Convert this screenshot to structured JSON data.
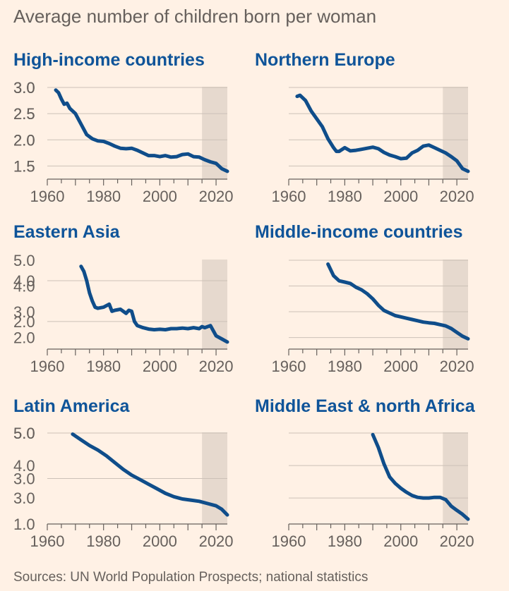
{
  "title": "Average number of children born per woman",
  "source": "Sources: UN World Population Prospects; national statistics",
  "colors": {
    "line": "#0f4d8a",
    "panel_title": "#0f5499",
    "projection_band": "#e6d9ce",
    "background": "#fff1e5"
  },
  "chart_data": [
    {
      "type": "line",
      "title": "High-income countries",
      "xlim": [
        1960,
        2024
      ],
      "ylim": [
        1.25,
        3.0
      ],
      "xticks": [
        "1960",
        "1980",
        "2000",
        "2020"
      ],
      "yticks": [
        "1.5",
        "2.0",
        "2.5",
        "3.0"
      ],
      "projection_start": 2015,
      "series": [
        {
          "x": [
            1963,
            1964,
            1965,
            1966,
            1967,
            1968,
            1970,
            1972,
            1974,
            1976,
            1978,
            1980,
            1982,
            1984,
            1986,
            1988,
            1990,
            1992,
            1994,
            1996,
            1998,
            2000,
            2002,
            2004,
            2006,
            2008,
            2010,
            2012,
            2014,
            2016,
            2018,
            2020,
            2022,
            2024
          ],
          "y": [
            2.95,
            2.9,
            2.78,
            2.68,
            2.7,
            2.6,
            2.5,
            2.3,
            2.1,
            2.02,
            1.98,
            1.97,
            1.93,
            1.88,
            1.84,
            1.83,
            1.84,
            1.8,
            1.75,
            1.7,
            1.7,
            1.68,
            1.7,
            1.67,
            1.68,
            1.72,
            1.73,
            1.68,
            1.67,
            1.62,
            1.58,
            1.55,
            1.45,
            1.4
          ]
        }
      ]
    },
    {
      "type": "line",
      "title": "Northern Europe",
      "xlim": [
        1960,
        2024
      ],
      "ylim": [
        1.25,
        3.0
      ],
      "xticks": [
        "1960",
        "1980",
        "2000",
        "2020"
      ],
      "yticks": [
        "1.5",
        "2.0",
        "2.5",
        "3.0"
      ],
      "projection_start": 2015,
      "series": [
        {
          "x": [
            1963,
            1964,
            1966,
            1968,
            1970,
            1972,
            1974,
            1976,
            1977,
            1978,
            1980,
            1982,
            1984,
            1986,
            1988,
            1990,
            1992,
            1994,
            1996,
            1998,
            2000,
            2002,
            2004,
            2006,
            2008,
            2010,
            2012,
            2014,
            2016,
            2018,
            2020,
            2022,
            2024
          ],
          "y": [
            2.83,
            2.85,
            2.75,
            2.55,
            2.4,
            2.25,
            2.02,
            1.85,
            1.78,
            1.78,
            1.85,
            1.79,
            1.8,
            1.82,
            1.84,
            1.86,
            1.83,
            1.76,
            1.71,
            1.68,
            1.64,
            1.65,
            1.75,
            1.8,
            1.88,
            1.9,
            1.85,
            1.8,
            1.75,
            1.68,
            1.6,
            1.45,
            1.4
          ]
        }
      ]
    },
    {
      "type": "line",
      "title": "Eastern Asia",
      "xlim": [
        1960,
        2024
      ],
      "ylim": [
        0.65,
        5.0
      ],
      "xticks": [
        "1960",
        "1980",
        "2000",
        "2020"
      ],
      "yticks": [
        "2.0",
        "4.0"
      ],
      "projection_start": 2015,
      "series": [
        {
          "x": [
            1972,
            1973,
            1974,
            1975,
            1976,
            1977,
            1978,
            1980,
            1982,
            1983,
            1984,
            1986,
            1988,
            1989,
            1990,
            1991,
            1992,
            1994,
            1996,
            1998,
            2000,
            2002,
            2004,
            2006,
            2008,
            2010,
            2012,
            2014,
            2015,
            2016,
            2018,
            2020,
            2022,
            2024
          ],
          "y": [
            4.7,
            4.45,
            4.0,
            3.4,
            3.0,
            2.7,
            2.65,
            2.7,
            2.85,
            2.5,
            2.55,
            2.6,
            2.4,
            2.55,
            2.5,
            2.0,
            1.8,
            1.7,
            1.63,
            1.6,
            1.62,
            1.6,
            1.65,
            1.65,
            1.68,
            1.65,
            1.7,
            1.65,
            1.75,
            1.7,
            1.8,
            1.3,
            1.15,
            1.0
          ]
        }
      ]
    },
    {
      "type": "line",
      "title": "Middle-income countries",
      "xlim": [
        1960,
        2024
      ],
      "ylim": [
        1.55,
        5.0
      ],
      "xticks": [
        "1960",
        "1980",
        "2000",
        "2020"
      ],
      "yticks": [
        "2.0",
        "3.0",
        "4.0",
        "5.0"
      ],
      "projection_start": 2015,
      "series": [
        {
          "x": [
            1974,
            1976,
            1978,
            1980,
            1982,
            1984,
            1986,
            1988,
            1990,
            1992,
            1994,
            1996,
            1998,
            2000,
            2002,
            2004,
            2006,
            2008,
            2010,
            2012,
            2014,
            2016,
            2018,
            2020,
            2022,
            2024
          ],
          "y": [
            4.85,
            4.4,
            4.2,
            4.15,
            4.1,
            3.95,
            3.85,
            3.7,
            3.5,
            3.25,
            3.05,
            2.95,
            2.85,
            2.8,
            2.75,
            2.7,
            2.65,
            2.6,
            2.57,
            2.55,
            2.5,
            2.45,
            2.35,
            2.2,
            2.05,
            1.95
          ]
        }
      ]
    },
    {
      "type": "line",
      "title": "Latin America",
      "xlim": [
        1960,
        2024
      ],
      "ylim": [
        1.0,
        5.0
      ],
      "xticks": [
        "1960",
        "1980",
        "2000",
        "2020"
      ],
      "yticks": [
        "1.0",
        "3.0",
        "5.0"
      ],
      "projection_start": 2015,
      "series": [
        {
          "x": [
            1969,
            1972,
            1975,
            1978,
            1981,
            1984,
            1987,
            1990,
            1993,
            1996,
            1999,
            2002,
            2005,
            2008,
            2011,
            2014,
            2017,
            2020,
            2022,
            2024
          ],
          "y": [
            4.95,
            4.7,
            4.45,
            4.25,
            4.0,
            3.7,
            3.4,
            3.15,
            2.95,
            2.75,
            2.55,
            2.35,
            2.2,
            2.1,
            2.05,
            2.0,
            1.9,
            1.8,
            1.65,
            1.4
          ]
        }
      ]
    },
    {
      "type": "line",
      "title": "Middle East & north Africa",
      "xlim": [
        1960,
        2024
      ],
      "ylim": [
        2.2,
        5.0
      ],
      "xticks": [
        "1960",
        "1980",
        "2000",
        "2020"
      ],
      "yticks": [
        "3.0",
        "4.0",
        "5.0"
      ],
      "projection_start": 2015,
      "series": [
        {
          "x": [
            1990,
            1992,
            1994,
            1996,
            1998,
            2000,
            2002,
            2004,
            2006,
            2008,
            2010,
            2012,
            2014,
            2016,
            2018,
            2020,
            2022,
            2024
          ],
          "y": [
            4.95,
            4.55,
            4.05,
            3.65,
            3.45,
            3.3,
            3.18,
            3.08,
            3.02,
            3.0,
            3.0,
            3.02,
            3.02,
            2.95,
            2.75,
            2.62,
            2.5,
            2.35
          ]
        }
      ]
    }
  ]
}
